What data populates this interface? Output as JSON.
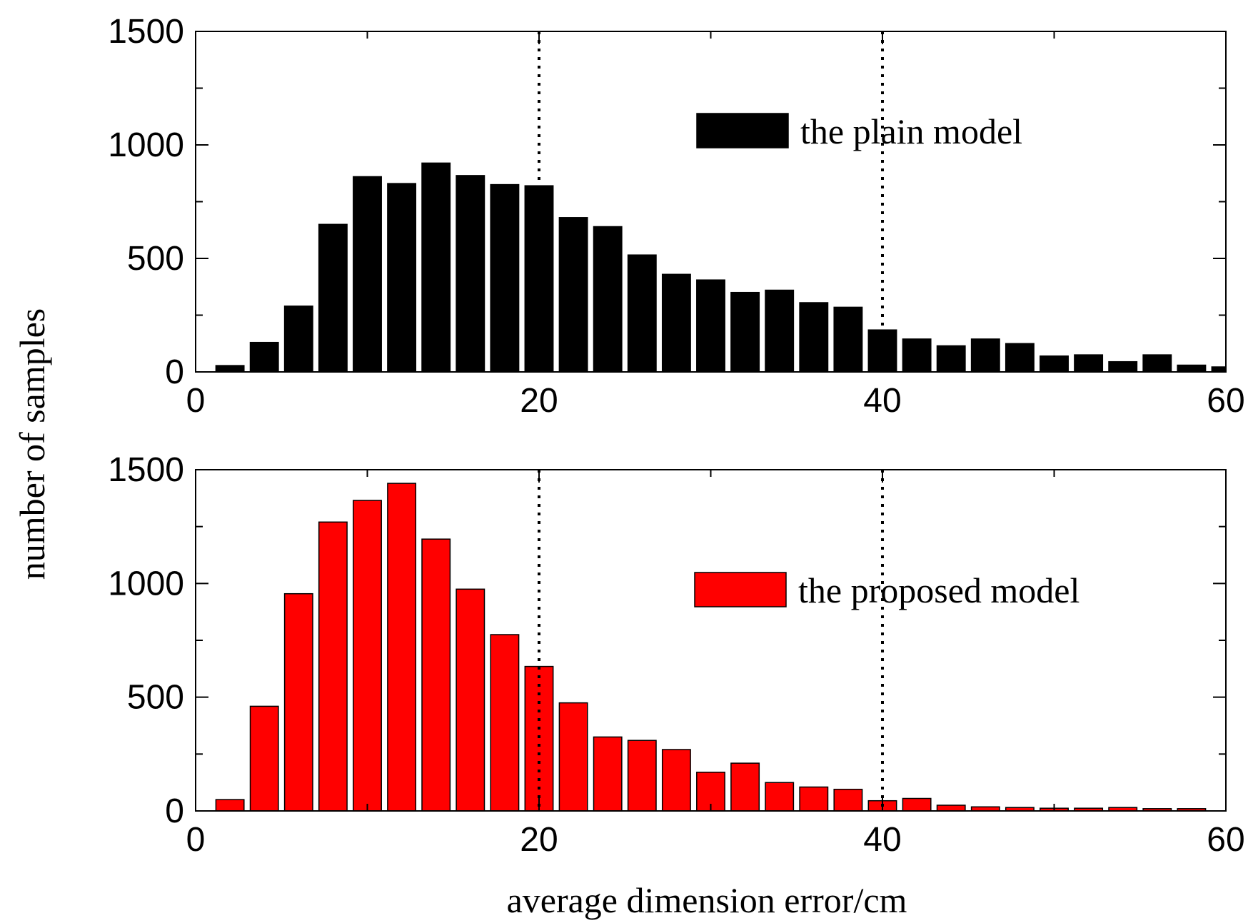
{
  "chart_data": {
    "type": "bar",
    "ylabel": "number of samples",
    "xlabel": "average dimension error/cm",
    "xlim": [
      0,
      60
    ],
    "ylim": [
      0,
      1500
    ],
    "xticks": [
      "0",
      "20",
      "40",
      "60"
    ],
    "yticks": [
      "0",
      "500",
      "1000",
      "1500"
    ],
    "reference_lines_x": [
      20,
      40
    ],
    "grid": false,
    "x": [
      2,
      4,
      6,
      8,
      10,
      12,
      14,
      16,
      18,
      20,
      22,
      24,
      26,
      28,
      30,
      32,
      34,
      36,
      38,
      40,
      42,
      44,
      46,
      48,
      50,
      52,
      54,
      56,
      58,
      60
    ],
    "series": [
      {
        "name": "the plain model",
        "color": "#000000",
        "legend_position": "upper-right",
        "values": [
          28,
          130,
          290,
          650,
          860,
          830,
          920,
          865,
          825,
          820,
          680,
          640,
          515,
          430,
          405,
          350,
          360,
          305,
          285,
          185,
          145,
          115,
          145,
          125,
          70,
          75,
          45,
          75,
          30,
          22
        ]
      },
      {
        "name": "the proposed model",
        "color": "#ff0000",
        "legend_position": "upper-right",
        "values": [
          50,
          460,
          955,
          1270,
          1365,
          1440,
          1195,
          975,
          775,
          635,
          475,
          325,
          310,
          270,
          170,
          210,
          125,
          105,
          95,
          45,
          55,
          25,
          18,
          15,
          12,
          12,
          15,
          10,
          10,
          0
        ]
      }
    ]
  }
}
